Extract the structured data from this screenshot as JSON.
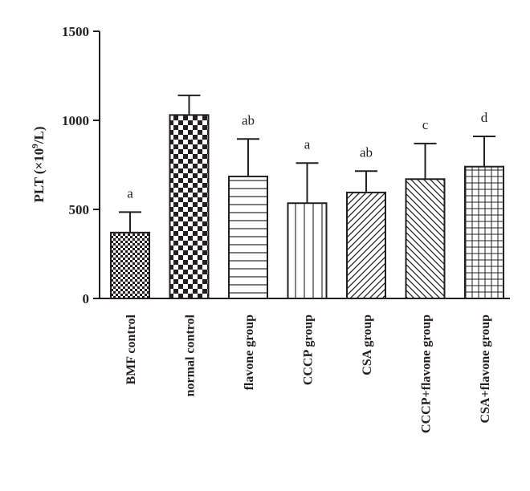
{
  "chart_data": {
    "type": "bar",
    "title": "",
    "xlabel": "",
    "ylabel": {
      "prefix": "PLT (×10",
      "superscript": "9",
      "suffix": "/L)"
    },
    "ylim": [
      0,
      1500
    ],
    "yticks": [
      "0",
      "500",
      "1000",
      "1500"
    ],
    "ytick_values": [
      0,
      500,
      1000,
      1500
    ],
    "grid": false,
    "legend": "none",
    "categories": [
      "BMF control",
      "normal control",
      "flavone group",
      "CCCP group",
      "CSA group",
      "CCCP+flavone group",
      "CSA+flavone group"
    ],
    "values": [
      370,
      1030,
      685,
      535,
      595,
      670,
      740
    ],
    "error": [
      115,
      110,
      210,
      225,
      120,
      200,
      170
    ],
    "significance_labels": [
      "a",
      "",
      "ab",
      "a",
      "ab",
      "c",
      "d"
    ],
    "patterns": [
      "fine-check",
      "coarse-check",
      "horizontal",
      "vertical",
      "diag-up",
      "diag-down",
      "grid"
    ],
    "colors": {
      "ink": "#231f20",
      "background": "#ffffff"
    }
  }
}
